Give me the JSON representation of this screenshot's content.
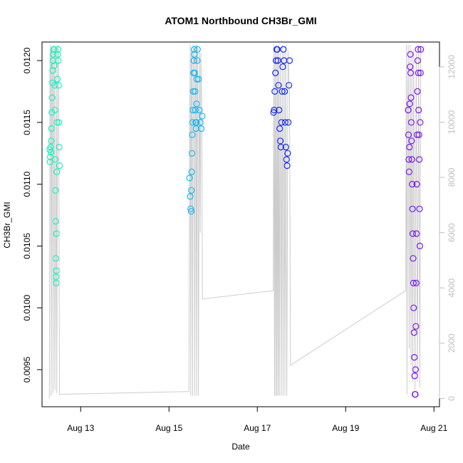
{
  "chart_data": {
    "type": "scatter",
    "title": "ATOM1 Northbound CH3Br_GMI",
    "xlabel": "Date",
    "ylabel": "CH3Br_GMI",
    "x_ticks": [
      {
        "date": "2016-08-13",
        "label": "Aug 13"
      },
      {
        "date": "2016-08-15",
        "label": "Aug 15"
      },
      {
        "date": "2016-08-17",
        "label": "Aug 17"
      },
      {
        "date": "2016-08-19",
        "label": "Aug 19"
      },
      {
        "date": "2016-08-21",
        "label": "Aug 21"
      }
    ],
    "xlim": [
      "2016-08-12T03:00",
      "2016-08-21T03:00"
    ],
    "ylim": [
      0.0092,
      0.01215
    ],
    "y_ticks": [
      {
        "value": 0.0095,
        "label": "0.0095"
      },
      {
        "value": 0.01,
        "label": "0.0100"
      },
      {
        "value": 0.0105,
        "label": "0.0105"
      },
      {
        "value": 0.011,
        "label": "0.0110"
      },
      {
        "value": 0.0115,
        "label": "0.0115"
      },
      {
        "value": 0.012,
        "label": "0.0120"
      }
    ],
    "y2_label": "",
    "y2lim": [
      -300,
      12900
    ],
    "y2_ticks": [
      {
        "value": 0,
        "label": "0"
      },
      {
        "value": 2000,
        "label": "2000"
      },
      {
        "value": 4000,
        "label": "4000"
      },
      {
        "value": 6000,
        "label": "6000"
      },
      {
        "value": 8000,
        "label": "8000"
      },
      {
        "value": 10000,
        "label": "10000"
      },
      {
        "value": 12000,
        "label": "12000"
      }
    ],
    "grid": false,
    "altitude_trace_color": "#cccccc",
    "series": [
      {
        "color": "#19f2c0",
        "points": [
          [
            "2016-08-12T07:10",
            0.01128
          ],
          [
            "2016-08-12T07:20",
            0.01118
          ],
          [
            "2016-08-12T07:30",
            0.01122
          ],
          [
            "2016-08-12T07:40",
            0.0113
          ],
          [
            "2016-08-12T07:50",
            0.01126
          ],
          [
            "2016-08-12T08:00",
            0.01135
          ],
          [
            "2016-08-12T08:10",
            0.01145
          ],
          [
            "2016-08-12T08:20",
            0.01158
          ],
          [
            "2016-08-12T08:30",
            0.0117
          ],
          [
            "2016-08-12T08:40",
            0.01182
          ],
          [
            "2016-08-12T08:50",
            0.01192
          ],
          [
            "2016-08-12T09:00",
            0.012
          ],
          [
            "2016-08-12T09:10",
            0.01205
          ],
          [
            "2016-08-12T09:20",
            0.01209
          ],
          [
            "2016-08-12T09:30",
            0.01209
          ],
          [
            "2016-08-12T09:40",
            0.01196
          ],
          [
            "2016-08-12T09:50",
            0.0118
          ],
          [
            "2016-08-12T10:00",
            0.0116
          ],
          [
            "2016-08-12T10:10",
            0.0112
          ],
          [
            "2016-08-12T10:20",
            0.01095
          ],
          [
            "2016-08-12T10:25",
            0.0107
          ],
          [
            "2016-08-12T10:30",
            0.0104
          ],
          [
            "2016-08-12T10:35",
            0.01025
          ],
          [
            "2016-08-12T10:40",
            0.0102
          ],
          [
            "2016-08-12T10:45",
            0.0103
          ],
          [
            "2016-08-12T10:50",
            0.0106
          ],
          [
            "2016-08-12T11:00",
            0.0111
          ],
          [
            "2016-08-12T11:10",
            0.0115
          ],
          [
            "2016-08-12T11:20",
            0.01185
          ],
          [
            "2016-08-12T11:30",
            0.01205
          ],
          [
            "2016-08-12T11:40",
            0.01209
          ],
          [
            "2016-08-12T11:50",
            0.012
          ],
          [
            "2016-08-12T12:00",
            0.0118
          ],
          [
            "2016-08-12T12:10",
            0.0115
          ],
          [
            "2016-08-12T12:20",
            0.0113
          ],
          [
            "2016-08-12T12:30",
            0.01115
          ]
        ]
      },
      {
        "color": "#18b8f2",
        "points": [
          [
            "2016-08-15T11:10",
            0.01105
          ],
          [
            "2016-08-15T11:30",
            0.0109
          ],
          [
            "2016-08-15T11:50",
            0.0108
          ],
          [
            "2016-08-15T12:00",
            0.01078
          ],
          [
            "2016-08-15T12:10",
            0.01095
          ],
          [
            "2016-08-15T12:20",
            0.0111
          ],
          [
            "2016-08-15T12:30",
            0.01125
          ],
          [
            "2016-08-15T12:40",
            0.0114
          ],
          [
            "2016-08-15T12:50",
            0.0115
          ],
          [
            "2016-08-15T13:00",
            0.0116
          ],
          [
            "2016-08-15T13:10",
            0.01175
          ],
          [
            "2016-08-15T13:20",
            0.0119
          ],
          [
            "2016-08-15T13:30",
            0.012
          ],
          [
            "2016-08-15T13:40",
            0.01209
          ],
          [
            "2016-08-15T13:50",
            0.01205
          ],
          [
            "2016-08-15T14:00",
            0.0119
          ],
          [
            "2016-08-15T14:10",
            0.01175
          ],
          [
            "2016-08-15T14:20",
            0.0116
          ],
          [
            "2016-08-15T14:30",
            0.0115
          ],
          [
            "2016-08-15T14:40",
            0.01145
          ],
          [
            "2016-08-15T14:50",
            0.0115
          ],
          [
            "2016-08-15T15:00",
            0.01165
          ],
          [
            "2016-08-15T15:10",
            0.01185
          ],
          [
            "2016-08-15T15:20",
            0.012
          ],
          [
            "2016-08-15T15:30",
            0.01209
          ],
          [
            "2016-08-15T16:00",
            0.01185
          ],
          [
            "2016-08-15T16:30",
            0.0116
          ],
          [
            "2016-08-15T17:00",
            0.0115
          ],
          [
            "2016-08-15T17:30",
            0.01145
          ],
          [
            "2016-08-15T18:00",
            0.01155
          ]
        ]
      },
      {
        "color": "#1a2ef2",
        "points": [
          [
            "2016-08-17T08:50",
            0.01158
          ],
          [
            "2016-08-17T09:10",
            0.0116
          ],
          [
            "2016-08-17T09:30",
            0.01175
          ],
          [
            "2016-08-17T09:50",
            0.0119
          ],
          [
            "2016-08-17T10:10",
            0.012
          ],
          [
            "2016-08-17T10:30",
            0.01209
          ],
          [
            "2016-08-17T10:50",
            0.01209
          ],
          [
            "2016-08-17T11:10",
            0.012
          ],
          [
            "2016-08-17T11:30",
            0.0118
          ],
          [
            "2016-08-17T11:50",
            0.0116
          ],
          [
            "2016-08-17T12:10",
            0.01145
          ],
          [
            "2016-08-17T12:30",
            0.01135
          ],
          [
            "2016-08-17T12:50",
            0.0113
          ],
          [
            "2016-08-17T13:10",
            0.0115
          ],
          [
            "2016-08-17T13:30",
            0.01175
          ],
          [
            "2016-08-17T13:50",
            0.01195
          ],
          [
            "2016-08-17T14:10",
            0.01209
          ],
          [
            "2016-08-17T14:30",
            0.012
          ],
          [
            "2016-08-17T14:50",
            0.01175
          ],
          [
            "2016-08-17T15:10",
            0.0115
          ],
          [
            "2016-08-17T15:30",
            0.0113
          ],
          [
            "2016-08-17T15:50",
            0.0112
          ],
          [
            "2016-08-17T16:10",
            0.01115
          ],
          [
            "2016-08-17T16:30",
            0.01125
          ],
          [
            "2016-08-17T16:50",
            0.0115
          ],
          [
            "2016-08-17T17:10",
            0.0118
          ],
          [
            "2016-08-17T17:30",
            0.012
          ]
        ]
      },
      {
        "color": "#7a1af2",
        "points": [
          [
            "2016-08-20T10:00",
            0.0116
          ],
          [
            "2016-08-20T10:10",
            0.0114
          ],
          [
            "2016-08-20T10:20",
            0.0112
          ],
          [
            "2016-08-20T10:30",
            0.0111
          ],
          [
            "2016-08-20T10:40",
            0.0113
          ],
          [
            "2016-08-20T10:50",
            0.01165
          ],
          [
            "2016-08-20T11:00",
            0.01195
          ],
          [
            "2016-08-20T11:10",
            0.01205
          ],
          [
            "2016-08-20T11:20",
            0.0119
          ],
          [
            "2016-08-20T11:30",
            0.0117
          ],
          [
            "2016-08-20T11:40",
            0.0115
          ],
          [
            "2016-08-20T11:50",
            0.01135
          ],
          [
            "2016-08-20T12:00",
            0.0112
          ],
          [
            "2016-08-20T12:10",
            0.011
          ],
          [
            "2016-08-20T12:20",
            0.0108
          ],
          [
            "2016-08-20T12:30",
            0.0106
          ],
          [
            "2016-08-20T12:40",
            0.0104
          ],
          [
            "2016-08-20T12:50",
            0.0102
          ],
          [
            "2016-08-20T13:00",
            0.01
          ],
          [
            "2016-08-20T13:10",
            0.0098
          ],
          [
            "2016-08-20T13:20",
            0.0096
          ],
          [
            "2016-08-20T13:30",
            0.00945
          ],
          [
            "2016-08-20T13:40",
            0.0093
          ],
          [
            "2016-08-20T13:50",
            0.0093
          ],
          [
            "2016-08-20T14:00",
            0.0095
          ],
          [
            "2016-08-20T14:10",
            0.00985
          ],
          [
            "2016-08-20T14:20",
            0.0102
          ],
          [
            "2016-08-20T14:30",
            0.0106
          ],
          [
            "2016-08-20T14:40",
            0.011
          ],
          [
            "2016-08-20T14:50",
            0.0114
          ],
          [
            "2016-08-20T15:00",
            0.01175
          ],
          [
            "2016-08-20T15:10",
            0.012
          ],
          [
            "2016-08-20T15:20",
            0.01209
          ],
          [
            "2016-08-20T15:30",
            0.0119
          ],
          [
            "2016-08-20T15:40",
            0.0116
          ],
          [
            "2016-08-20T15:50",
            0.0114
          ],
          [
            "2016-08-20T16:00",
            0.0112
          ],
          [
            "2016-08-20T16:10",
            0.0108
          ],
          [
            "2016-08-20T16:20",
            0.0105
          ],
          [
            "2016-08-20T16:30",
            0.0115
          ],
          [
            "2016-08-20T16:40",
            0.0119
          ],
          [
            "2016-08-20T16:50",
            0.01209
          ]
        ]
      }
    ],
    "altitude_trace": [
      [
        "2016-08-12T07:00",
        0
      ],
      [
        "2016-08-12T07:20",
        12500
      ],
      [
        "2016-08-12T07:40",
        12800
      ],
      [
        "2016-08-12T08:00",
        100
      ],
      [
        "2016-08-12T08:20",
        12600
      ],
      [
        "2016-08-12T08:40",
        12700
      ],
      [
        "2016-08-12T09:00",
        200
      ],
      [
        "2016-08-12T09:20",
        12800
      ],
      [
        "2016-08-12T09:40",
        12500
      ],
      [
        "2016-08-12T10:00",
        300
      ],
      [
        "2016-08-12T10:20",
        4500
      ],
      [
        "2016-08-12T10:40",
        12600
      ],
      [
        "2016-08-12T11:00",
        200
      ],
      [
        "2016-08-12T11:30",
        12800
      ],
      [
        "2016-08-12T12:00",
        12400
      ],
      [
        "2016-08-12T12:30",
        150
      ],
      [
        "2016-08-15T10:50",
        250
      ],
      [
        "2016-08-15T11:10",
        9000
      ],
      [
        "2016-08-15T11:30",
        12800
      ],
      [
        "2016-08-15T11:50",
        100
      ],
      [
        "2016-08-15T12:10",
        12700
      ],
      [
        "2016-08-15T12:30",
        12500
      ],
      [
        "2016-08-15T12:50",
        100
      ],
      [
        "2016-08-15T13:10",
        12800
      ],
      [
        "2016-08-15T13:40",
        12600
      ],
      [
        "2016-08-15T14:00",
        100
      ],
      [
        "2016-08-15T14:20",
        11200
      ],
      [
        "2016-08-15T14:40",
        12800
      ],
      [
        "2016-08-15T15:00",
        100
      ],
      [
        "2016-08-15T15:20",
        12800
      ],
      [
        "2016-08-15T15:40",
        11500
      ],
      [
        "2016-08-15T16:00",
        100
      ],
      [
        "2016-08-15T16:30",
        12600
      ],
      [
        "2016-08-15T17:00",
        6000
      ],
      [
        "2016-08-15T17:20",
        12500
      ],
      [
        "2016-08-15T17:50",
        10500
      ],
      [
        "2016-08-15T18:10",
        3600
      ],
      [
        "2016-08-17T08:40",
        3900
      ],
      [
        "2016-08-17T09:00",
        12800
      ],
      [
        "2016-08-17T09:20",
        100
      ],
      [
        "2016-08-17T09:40",
        12700
      ],
      [
        "2016-08-17T10:00",
        100
      ],
      [
        "2016-08-17T10:20",
        12800
      ],
      [
        "2016-08-17T10:40",
        100
      ],
      [
        "2016-08-17T11:00",
        12700
      ],
      [
        "2016-08-17T11:20",
        100
      ],
      [
        "2016-08-17T11:40",
        12800
      ],
      [
        "2016-08-17T12:00",
        100
      ],
      [
        "2016-08-17T12:30",
        12500
      ],
      [
        "2016-08-17T13:00",
        100
      ],
      [
        "2016-08-17T13:30",
        12800
      ],
      [
        "2016-08-17T14:00",
        100
      ],
      [
        "2016-08-17T14:30",
        12600
      ],
      [
        "2016-08-17T15:00",
        100
      ],
      [
        "2016-08-17T15:30",
        12800
      ],
      [
        "2016-08-17T16:00",
        100
      ],
      [
        "2016-08-17T16:40",
        12600
      ],
      [
        "2016-08-17T17:30",
        11000
      ],
      [
        "2016-08-17T18:00",
        1200
      ],
      [
        "2016-08-20T08:40",
        3900
      ],
      [
        "2016-08-20T09:00",
        12800
      ],
      [
        "2016-08-20T09:20",
        150
      ],
      [
        "2016-08-20T09:40",
        10000
      ],
      [
        "2016-08-20T10:00",
        12800
      ],
      [
        "2016-08-20T10:30",
        1800
      ],
      [
        "2016-08-20T11:00",
        12800
      ],
      [
        "2016-08-20T11:30",
        1200
      ],
      [
        "2016-08-20T12:00",
        12500
      ],
      [
        "2016-08-20T12:30",
        600
      ],
      [
        "2016-08-20T13:00",
        12600
      ],
      [
        "2016-08-20T13:40",
        300
      ],
      [
        "2016-08-20T14:20",
        12500
      ],
      [
        "2016-08-20T15:00",
        600
      ],
      [
        "2016-08-20T15:40",
        12800
      ],
      [
        "2016-08-20T16:20",
        400
      ],
      [
        "2016-08-20T16:50",
        12700
      ]
    ]
  }
}
